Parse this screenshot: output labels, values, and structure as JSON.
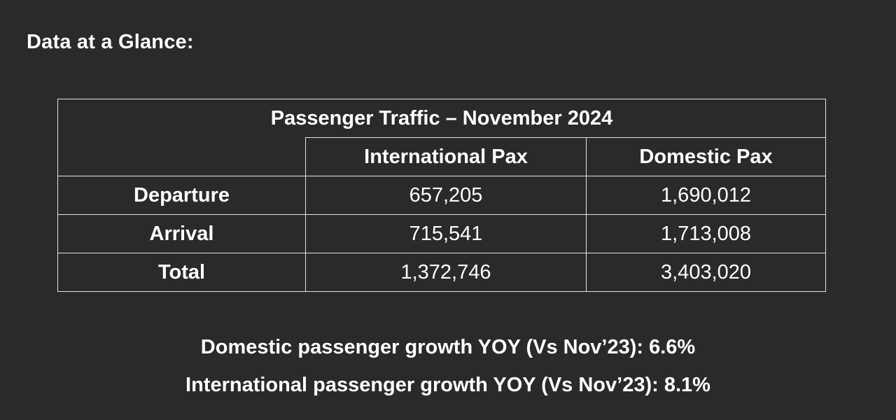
{
  "heading": "Data at a Glance:",
  "chart_data": {
    "type": "table",
    "title": "Passenger Traffic – November 2024",
    "columns": [
      "International Pax",
      "Domestic Pax"
    ],
    "rows": [
      {
        "label": "Departure",
        "values": [
          "657,205",
          "1,690,012"
        ]
      },
      {
        "label": "Arrival",
        "values": [
          "715,541",
          "1,713,008"
        ]
      },
      {
        "label": "Total",
        "values": [
          "1,372,746",
          "3,403,020"
        ]
      }
    ]
  },
  "growth": [
    "Domestic passenger growth YOY (Vs Nov’23): 6.6%",
    "International passenger growth YOY (Vs Nov’23): 8.1%"
  ]
}
